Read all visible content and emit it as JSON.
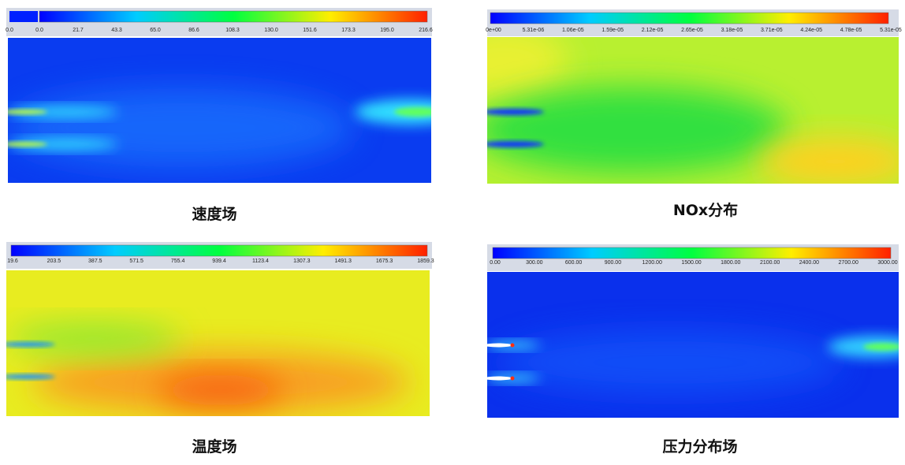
{
  "panels": [
    {
      "caption": "速度场",
      "colorbar_labels": [
        "0.0",
        "0.0",
        "21.7",
        "43.3",
        "65.0",
        "86.6",
        "108.3",
        "130.0",
        "151.6",
        "173.3",
        "195.0",
        "216.6"
      ]
    },
    {
      "caption": "NOx分布",
      "colorbar_labels": [
        "0e+00",
        "5.31e-06",
        "1.06e-05",
        "1.59e-05",
        "2.12e-05",
        "2.65e-05",
        "3.18e-05",
        "3.71e-05",
        "4.24e-05",
        "4.78e-05",
        "5.31e-05"
      ]
    },
    {
      "caption": "温度场",
      "colorbar_labels": [
        "19.6",
        "203.5",
        "387.5",
        "571.5",
        "755.4",
        "939.4",
        "1123.4",
        "1307.3",
        "1491.3",
        "1675.3",
        "1859.3"
      ]
    },
    {
      "caption": "压力分布场",
      "colorbar_labels": [
        "0.00",
        "300.00",
        "600.00",
        "900.00",
        "1200.00",
        "1500.00",
        "1800.00",
        "2100.00",
        "2400.00",
        "2700.00",
        "3000.00"
      ]
    }
  ]
}
